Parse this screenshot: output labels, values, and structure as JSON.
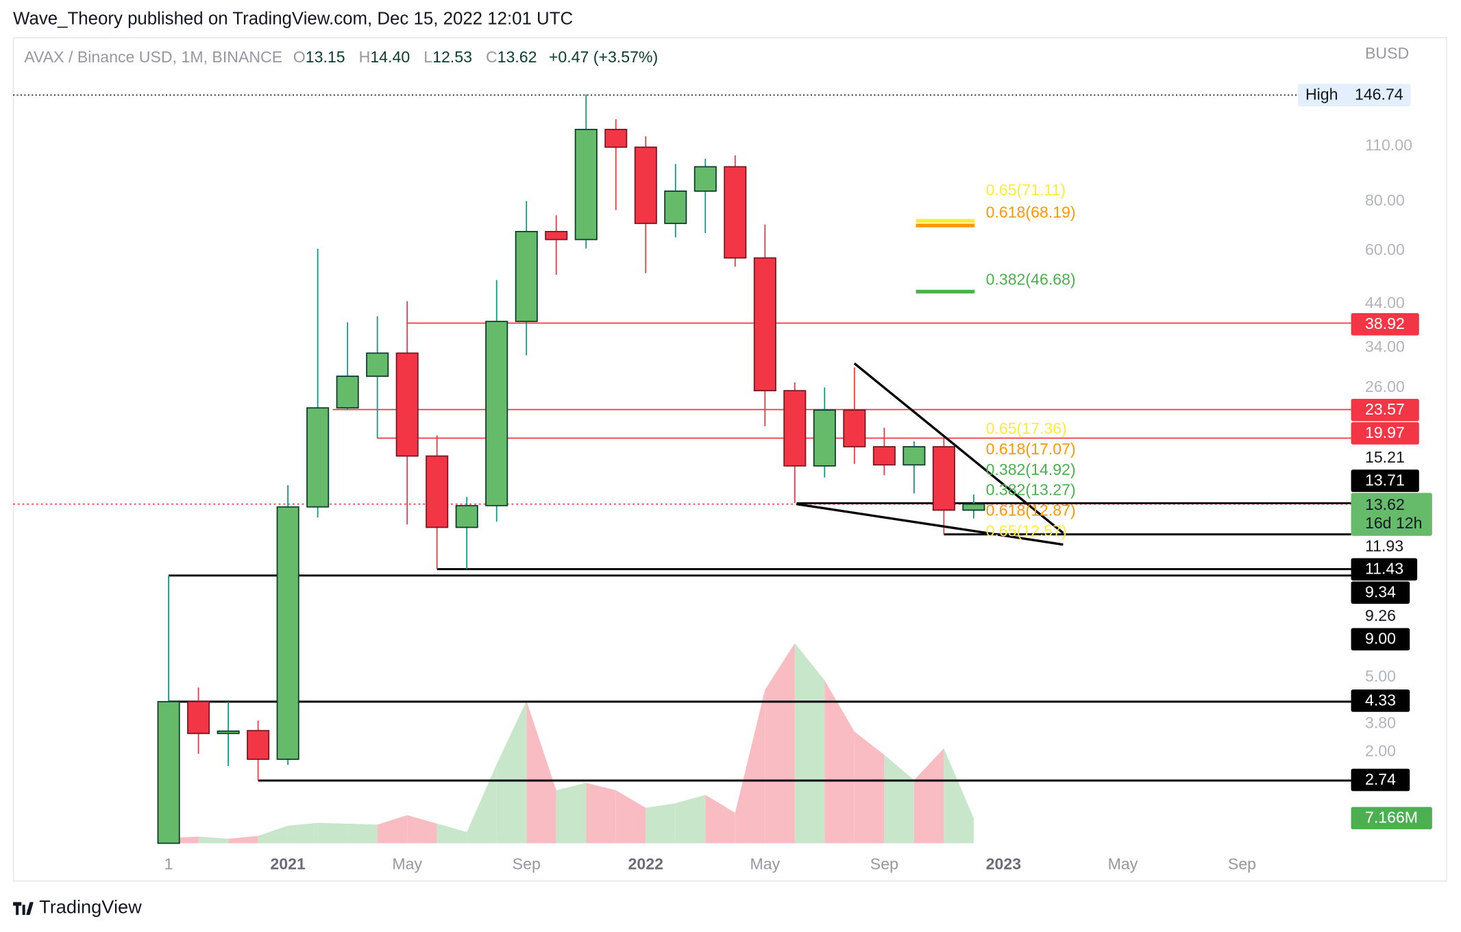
{
  "header": {
    "published": "Wave_Theory published on TradingView.com, Dec 15, 2022 12:01 UTC"
  },
  "legend": {
    "symbol": "AVAX / Binance USD, 1M, BINANCE",
    "o_key": "O",
    "o": "13.15",
    "h_key": "H",
    "h": "14.40",
    "l_key": "L",
    "l": "12.53",
    "c_key": "C",
    "c": "13.62",
    "change": "+0.47 (+3.57%)"
  },
  "footer": {
    "brand": "TradingView",
    "logo_icon": "tradingview-logo-icon"
  },
  "colors": {
    "up": "#66bb6a",
    "down": "#f23645",
    "up_wick": "#089981",
    "down_wick": "#f23645",
    "vol_up": "#c8e6c9",
    "vol_down": "#f9bcc2"
  },
  "chart_data": {
    "type": "candlestick",
    "currency": "BUSD",
    "scale": "log",
    "months": [
      "Sep 2020",
      "Oct 2020",
      "Nov 2020",
      "Dec 2020",
      "Jan 2021",
      "Feb 2021",
      "Mar 2021",
      "Apr 2021",
      "May 2021",
      "Jun 2021",
      "Jul 2021",
      "Aug 2021",
      "Sep 2021",
      "Oct 2021",
      "Nov 2021",
      "Dec 2021",
      "Jan 2022",
      "Feb 2022",
      "Mar 2022",
      "Apr 2022",
      "May 2022",
      "Jun 2022",
      "Jul 2022",
      "Aug 2022",
      "Sep 2022",
      "Oct 2022",
      "Nov 2022",
      "Dec 2022"
    ],
    "ohlc": [
      [
        1.9,
        9.0,
        1.9,
        4.33
      ],
      [
        4.33,
        4.7,
        3.2,
        3.6
      ],
      [
        3.6,
        4.33,
        2.98,
        3.65
      ],
      [
        3.66,
        3.88,
        2.74,
        3.1
      ],
      [
        3.1,
        15.2,
        3.0,
        13.4
      ],
      [
        13.4,
        59.9,
        12.6,
        23.8
      ],
      [
        23.8,
        39.1,
        23.5,
        28.6
      ],
      [
        28.6,
        40.5,
        19.97,
        32.7
      ],
      [
        32.7,
        44.2,
        12.1,
        18.0
      ],
      [
        18.0,
        20.3,
        9.34,
        11.9
      ],
      [
        11.9,
        14.2,
        9.34,
        13.5
      ],
      [
        13.5,
        50,
        12.3,
        39.3
      ],
      [
        39.3,
        79,
        32.3,
        66.2
      ],
      [
        66.2,
        72.7,
        51.5,
        63.2
      ],
      [
        63.2,
        146.74,
        60,
        119.7
      ],
      [
        119.7,
        127,
        75,
        108
      ],
      [
        108,
        115,
        52,
        69.4
      ],
      [
        69.4,
        98,
        64,
        83.7
      ],
      [
        83.7,
        101,
        65.6,
        96.4
      ],
      [
        96.4,
        103,
        54,
        56.8
      ],
      [
        56.8,
        69,
        21.4,
        26.3
      ],
      [
        26.3,
        27.6,
        13.7,
        17.0
      ],
      [
        17.0,
        26.8,
        15.9,
        23.5
      ],
      [
        23.5,
        30.1,
        17.2,
        19.0
      ],
      [
        19.0,
        21.2,
        16.1,
        17.1
      ],
      [
        17.1,
        19.6,
        14.5,
        19.0
      ],
      [
        19.0,
        19.97,
        11.43,
        13.15
      ],
      [
        13.15,
        14.4,
        12.53,
        13.62
      ]
    ],
    "volume_m": [
      1.5,
      1.9,
      1.3,
      2.1,
      5.0,
      5.8,
      5.6,
      5.3,
      8.0,
      5.6,
      3.2,
      22.5,
      40.6,
      15.1,
      17.2,
      15.1,
      10.1,
      11.4,
      13.8,
      8.7,
      43.7,
      57.0,
      46.4,
      31.8,
      25.2,
      18.0,
      27.0,
      7.166
    ],
    "last_volume_label": "7.166M",
    "levels": [
      {
        "price": 38.92,
        "label": "38.92",
        "color": "#f23645",
        "from_month": 8
      },
      {
        "price": 23.57,
        "label": "23.57",
        "color": "#f23645",
        "from_month": 5.5
      },
      {
        "price": 19.97,
        "label": "19.97",
        "color": "#f23645",
        "from_month": 7
      },
      {
        "price": 11.43,
        "label": "11.43",
        "color": "#000000",
        "from_month": 26
      },
      {
        "price": 9.34,
        "label": "9.34",
        "color": "#000000",
        "from_month": 9
      },
      {
        "price": 9.0,
        "label": "9.00",
        "color": "#000000",
        "from_month": 0
      },
      {
        "price": 4.33,
        "label": "4.33",
        "color": "#000000",
        "from_month": 0
      },
      {
        "price": 2.74,
        "label": "2.74",
        "color": "#000000",
        "from_month": 3
      }
    ],
    "trendlines": [
      {
        "from": [
          23,
          30.8
        ],
        "to": [
          30,
          11.52
        ]
      },
      {
        "from": [
          21.06,
          13.62
        ],
        "to": [
          30,
          10.77
        ]
      }
    ],
    "high": {
      "label": "High",
      "value": "146.74"
    },
    "last_price": {
      "value": "13.62",
      "countdown": "16d 12h"
    },
    "fib_upper": [
      {
        "price": 71.11,
        "label": "0.65(71.11)",
        "color": "#ffeb3b"
      },
      {
        "price": 68.19,
        "label": "0.618(68.19)",
        "color": "#ff9800"
      },
      {
        "price": 46.68,
        "label": "0.382(46.68)",
        "color": "#4caf50"
      }
    ],
    "fib_lower": [
      {
        "price": 17.36,
        "label": "0.65(17.36)",
        "color": "#ffeb3b"
      },
      {
        "price": 17.07,
        "label": "0.618(17.07)",
        "color": "#ff9800"
      },
      {
        "price": 14.92,
        "label": "0.382(14.92)",
        "color": "#4caf50"
      },
      {
        "price": 13.27,
        "label": "0.382(13.27)",
        "color": "#4caf50"
      },
      {
        "price": 12.57,
        "label": "0.65(12.57)",
        "color": "#ffeb3b"
      },
      {
        "price": 12.87,
        "label": "0.618(12.87)",
        "color": "#ff9800"
      }
    ],
    "y_ticks": [
      "110.00",
      "80.00",
      "60.00",
      "44.00",
      "34.00",
      "26.00",
      "15.21",
      "11.93",
      "9.26",
      "5.00",
      "3.80",
      "2.00"
    ],
    "marker_13_71": "13.71",
    "x_ticks": [
      {
        "label": "1",
        "month": 0,
        "bold": false
      },
      {
        "label": "2021",
        "month": 4,
        "bold": true
      },
      {
        "label": "May",
        "month": 8,
        "bold": false
      },
      {
        "label": "Sep",
        "month": 12,
        "bold": false
      },
      {
        "label": "2022",
        "month": 16,
        "bold": true
      },
      {
        "label": "May",
        "month": 20,
        "bold": false
      },
      {
        "label": "Sep",
        "month": 24,
        "bold": false
      },
      {
        "label": "2023",
        "month": 28,
        "bold": true
      },
      {
        "label": "May",
        "month": 32,
        "bold": false
      },
      {
        "label": "Sep",
        "month": 36,
        "bold": false
      }
    ]
  }
}
